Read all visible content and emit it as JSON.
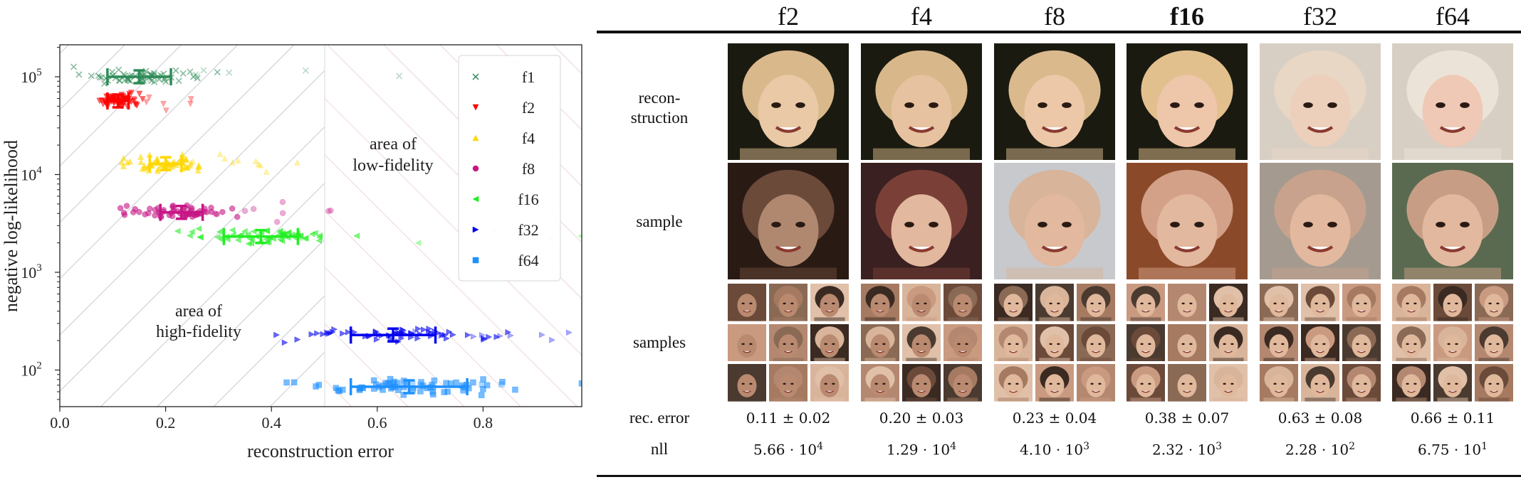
{
  "chart_data": {
    "type": "scatter",
    "xlabel": "reconstruction error",
    "ylabel": "negative log-likelihood",
    "xlim": [
      0.0,
      0.987
    ],
    "ylim": [
      43,
      214000
    ],
    "yscale": "log",
    "xticks": [
      "0.0",
      "0.2",
      "0.4",
      "0.6",
      "0.8"
    ],
    "xtick_values": [
      0.0,
      0.2,
      0.4,
      0.6,
      0.8
    ],
    "yticks": [
      {
        "base": "10",
        "exp": "5",
        "value": 100000
      },
      {
        "base": "10",
        "exp": "4",
        "value": 10000
      },
      {
        "base": "10",
        "exp": "3",
        "value": 1000
      },
      {
        "base": "10",
        "exp": "2",
        "value": 100
      }
    ],
    "threshold_x": 0.5,
    "annotations": [
      {
        "line1": "area of",
        "line2": "high-fidelity"
      },
      {
        "line1": "area of",
        "line2": "low-fidelity"
      }
    ],
    "legend_position": "top-right",
    "series": [
      {
        "name": "f1",
        "marker": "x",
        "color": "#2e8b57",
        "x_mean": 0.15,
        "x_std": 0.06,
        "nll": 100000,
        "x_spread": 0.06
      },
      {
        "name": "f2",
        "marker": "v",
        "color": "#ff0000",
        "x_mean": 0.11,
        "x_std": 0.02,
        "nll": 56600,
        "x_spread": 0.025
      },
      {
        "name": "f4",
        "marker": "^",
        "color": "#ffd700",
        "x_mean": 0.2,
        "x_std": 0.03,
        "nll": 12900,
        "x_spread": 0.035
      },
      {
        "name": "f8",
        "marker": "o",
        "color": "#c71585",
        "x_mean": 0.23,
        "x_std": 0.04,
        "nll": 4100,
        "x_spread": 0.055
      },
      {
        "name": "f16",
        "marker": "<",
        "color": "#22ee22",
        "x_mean": 0.38,
        "x_std": 0.07,
        "nll": 2320,
        "x_spread": 0.09
      },
      {
        "name": "f32",
        "marker": ">",
        "color": "#0000ee",
        "x_mean": 0.63,
        "x_std": 0.08,
        "nll": 228,
        "x_spread": 0.09
      },
      {
        "name": "f64",
        "marker": "s",
        "color": "#1e90ff",
        "x_mean": 0.66,
        "x_std": 0.11,
        "nll": 67.5,
        "x_spread": 0.12
      }
    ]
  },
  "table": {
    "columns": [
      {
        "label": "f2",
        "rec_error": "0.11 ± 0.02",
        "nll_base": "5.66 · 10",
        "nll_exp": "4"
      },
      {
        "label": "f4",
        "rec_error": "0.20 ± 0.03",
        "nll_base": "1.29 · 10",
        "nll_exp": "4"
      },
      {
        "label": "f8",
        "rec_error": "0.23 ± 0.04",
        "nll_base": "4.10 · 10",
        "nll_exp": "3"
      },
      {
        "label": "f16",
        "rec_error": "0.38 ± 0.07",
        "nll_base": "2.32 · 10",
        "nll_exp": "3"
      },
      {
        "label": "f32",
        "rec_error": "0.63 ± 0.08",
        "nll_base": "2.28 · 10",
        "nll_exp": "2"
      },
      {
        "label": "f64",
        "rec_error": "0.66 ± 0.11",
        "nll_base": "6.75 · 10",
        "nll_exp": "1"
      }
    ],
    "rows": {
      "reconstruction_1": "recon-",
      "reconstruction_2": "struction",
      "sample": "sample",
      "samples": "samples",
      "rec_error": "rec. error",
      "nll": "nll"
    }
  }
}
